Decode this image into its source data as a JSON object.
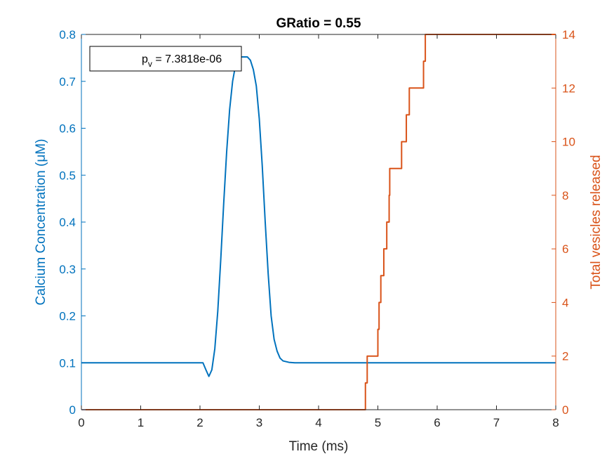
{
  "chart_data": {
    "type": "line",
    "title": "GRatio = 0.55",
    "xlabel": "Time (ms)",
    "ylabel_left": "Calcium Concentration (μM)",
    "ylabel_right": "Total vesicles released",
    "xlim": [
      0,
      8
    ],
    "ylim_left": [
      0,
      0.8
    ],
    "ylim_right": [
      0,
      14
    ],
    "xticks": [
      "0",
      "1",
      "2",
      "3",
      "4",
      "5",
      "6",
      "7",
      "8"
    ],
    "yticks_left": [
      "0",
      "0.1",
      "0.2",
      "0.3",
      "0.4",
      "0.5",
      "0.6",
      "0.7",
      "0.8"
    ],
    "yticks_right": [
      "0",
      "2",
      "4",
      "6",
      "8",
      "10",
      "12",
      "14"
    ],
    "grid": false,
    "colors": {
      "left": "#0072BD",
      "right": "#D95319",
      "axis": "#262626"
    },
    "annotation": {
      "base": "p",
      "sub": "v",
      "text": " = 7.3818e-06"
    },
    "series": [
      {
        "axis": "left",
        "x": [
          0,
          2.05,
          2.1,
          2.15,
          2.2,
          2.25,
          2.3,
          2.35,
          2.4,
          2.45,
          2.5,
          2.55,
          2.6,
          2.65,
          2.7,
          2.75,
          2.8,
          2.85,
          2.9,
          2.95,
          3.0,
          3.05,
          3.1,
          3.15,
          3.2,
          3.25,
          3.3,
          3.35,
          3.4,
          3.5,
          3.6,
          3.8,
          8
        ],
        "y": [
          0.1,
          0.1,
          0.085,
          0.071,
          0.085,
          0.13,
          0.21,
          0.32,
          0.44,
          0.55,
          0.64,
          0.7,
          0.735,
          0.75,
          0.752,
          0.752,
          0.752,
          0.745,
          0.725,
          0.69,
          0.62,
          0.52,
          0.4,
          0.29,
          0.2,
          0.15,
          0.125,
          0.11,
          0.104,
          0.101,
          0.1,
          0.1,
          0.1
        ]
      },
      {
        "axis": "right",
        "step": true,
        "x": [
          0,
          4.79,
          4.82,
          4.86,
          5.0,
          5.02,
          5.05,
          5.1,
          5.15,
          5.19,
          5.2,
          5.4,
          5.48,
          5.53,
          5.55,
          5.77,
          5.8,
          8
        ],
        "y": [
          0,
          1,
          2,
          2,
          3,
          4,
          5,
          6,
          7,
          8,
          9,
          10,
          11,
          12,
          12,
          13,
          14,
          14
        ]
      }
    ]
  }
}
